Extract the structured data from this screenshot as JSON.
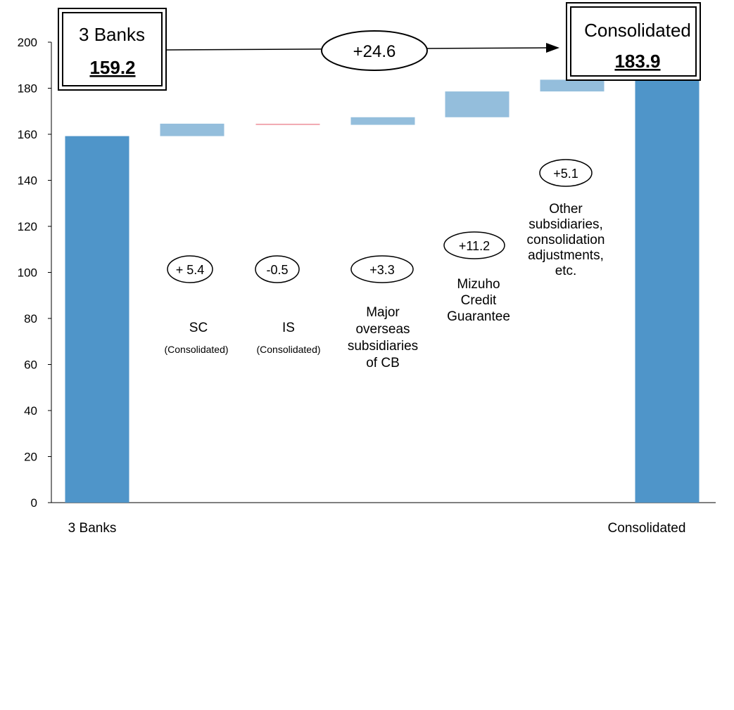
{
  "chart_data": {
    "type": "bar",
    "subtype": "waterfall",
    "ylim": [
      0,
      200
    ],
    "yticks": [
      "0",
      "20",
      "40",
      "60",
      "80",
      "100",
      "120",
      "140",
      "160",
      "180",
      "200"
    ],
    "grid": false,
    "colors": {
      "total": "#4f95c9",
      "increase": "#94bedc",
      "decrease": "#f2a8b2"
    },
    "categories": [
      {
        "label": "3 Banks",
        "kind": "total",
        "value": 159.2
      },
      {
        "label": "SC",
        "sublabel": "(Consolidated)",
        "kind": "delta",
        "delta": 5.4,
        "delta_text": "+ 5.4"
      },
      {
        "label": "IS",
        "sublabel": "(Consolidated)",
        "kind": "delta",
        "delta": -0.5,
        "delta_text": "-0.5"
      },
      {
        "label": "Major overseas subsidiaries of CB",
        "kind": "delta",
        "delta": 3.3,
        "delta_text": "+3.3"
      },
      {
        "label": "Mizuho Credit Guarantee",
        "kind": "delta",
        "delta": 11.2,
        "delta_text": "+11.2"
      },
      {
        "label": "Other subsidiaries, consolidation adjustments, etc.",
        "kind": "delta",
        "delta": 5.1,
        "delta_text": "+5.1"
      },
      {
        "label": "Consolidated",
        "kind": "total",
        "value": 183.9
      }
    ],
    "callouts": {
      "start": {
        "title": "3 Banks",
        "value": "159.2"
      },
      "end": {
        "title": "Consolidated",
        "value": "183.9"
      },
      "change": "+24.6"
    }
  }
}
